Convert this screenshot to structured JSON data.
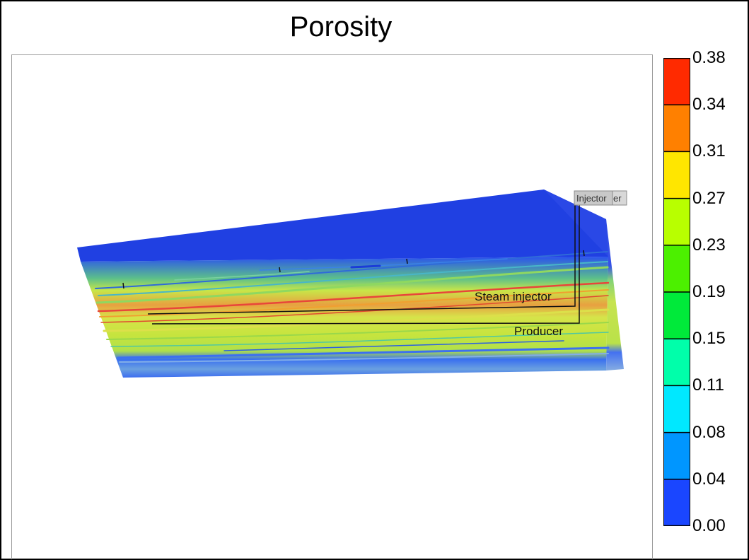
{
  "title": "Porosity",
  "wells": {
    "tag_label": "Injector",
    "tag_suffix": "er",
    "steam_injector_label": "Steam injector",
    "producer_label": "Producer"
  },
  "colorbar": {
    "tick_labels": [
      "0.38",
      "0.34",
      "0.31",
      "0.27",
      "0.23",
      "0.19",
      "0.15",
      "0.11",
      "0.08",
      "0.04",
      "0.00"
    ],
    "band_colors_top_to_bottom": [
      "#ff2a00",
      "#ff8000",
      "#ffe600",
      "#b8ff00",
      "#4cf000",
      "#00ea3a",
      "#00ffaa",
      "#00e8ff",
      "#0096ff",
      "#1a46ff"
    ]
  },
  "palette": {
    "top_blue": "#1f3fe0",
    "bottom_blue": "#3a6af0",
    "mid_yellow": "#e4ea4a",
    "mid_green": "#b8e63a",
    "streak_red": "#e8463a",
    "streak_orange": "#f0a030",
    "streak_cyan": "#30d8d0"
  }
}
